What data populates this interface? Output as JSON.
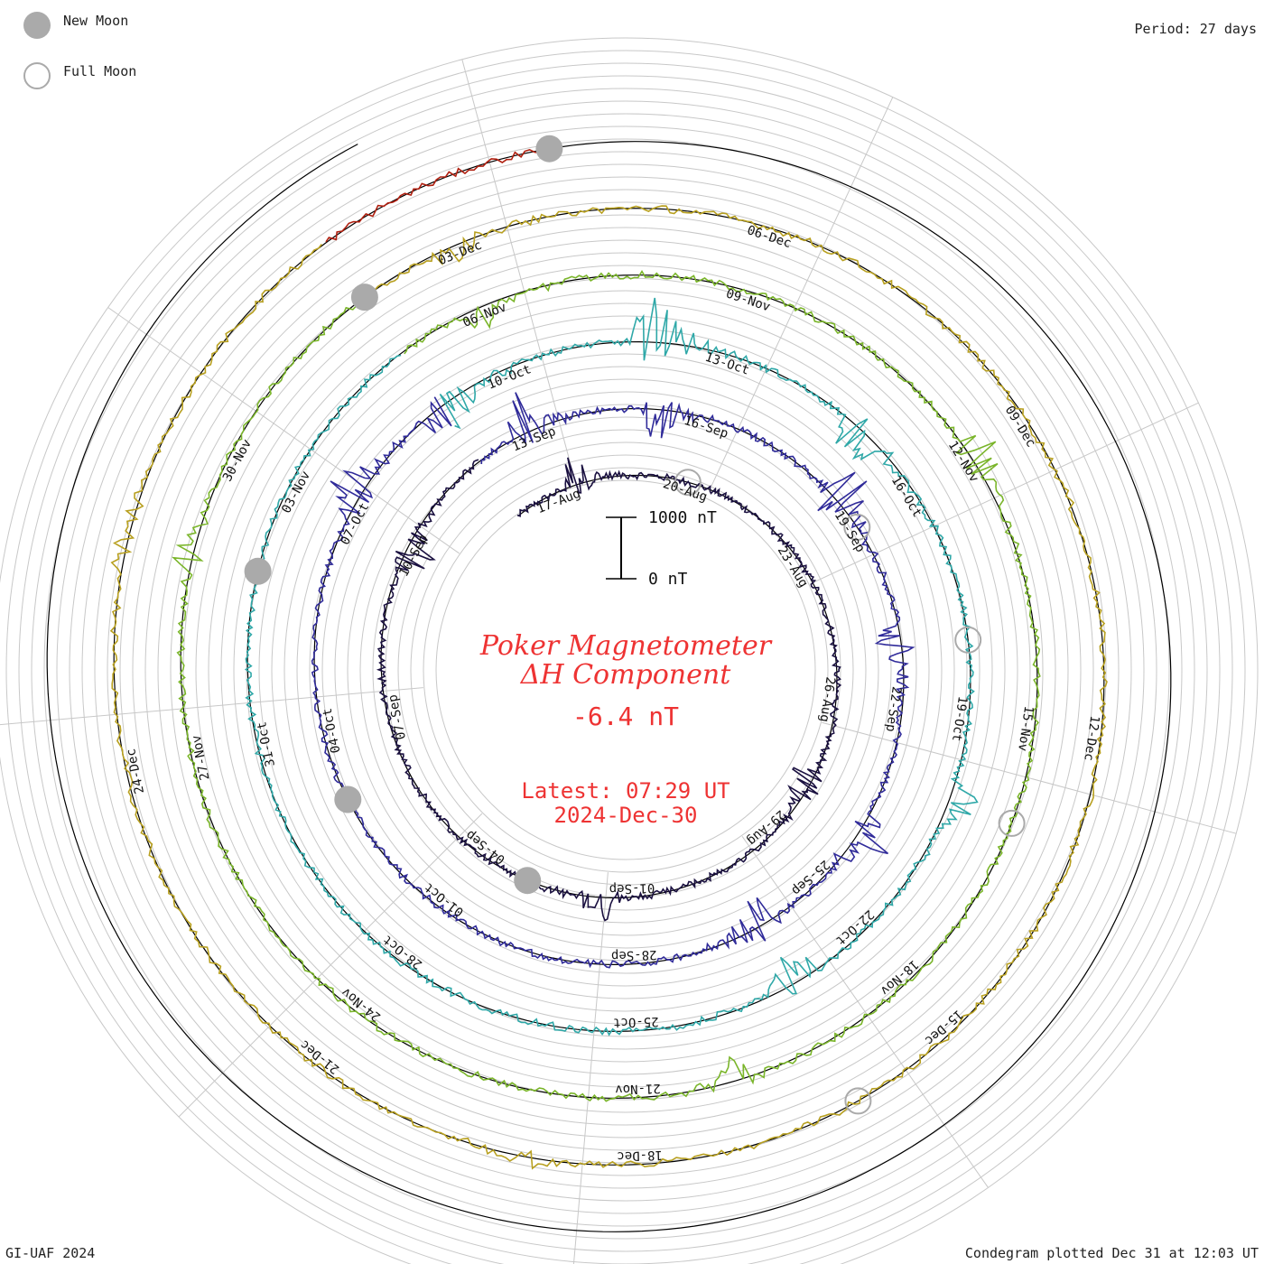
{
  "legend": {
    "new_moon_label": "New Moon",
    "full_moon_label": "Full Moon",
    "new_moon_color": "#aaaaaa",
    "full_moon_color": "#aaaaaa"
  },
  "header": {
    "period": "Period: 27 days"
  },
  "footer": {
    "credit": "GI-UAF 2024",
    "plotted": "Condegram plotted Dec 31 at 12:03 UT"
  },
  "title": {
    "line1": "Poker Magnetometer",
    "line2": "ΔH Component",
    "value": "-6.4 nT",
    "latest": "Latest: 07:29 UT",
    "date": "2024-Dec-30",
    "color": "#ee3333"
  },
  "scale": {
    "top_label": "1000 nT",
    "bottom_label": "0 nT"
  },
  "chart_data": {
    "type": "line",
    "period_days": 27,
    "units": "nT",
    "title": "Poker Magnetometer ΔH Component",
    "x_date_range": [
      "2024-08-15",
      "2024-12-30"
    ],
    "scale_bar": [
      0,
      1000
    ],
    "cycles": [
      {
        "start": "2024-08-15",
        "color": "#1a1040",
        "date_labels": [
          "17-Aug",
          "20-Aug",
          "23-Aug",
          "26-Aug",
          "29-Aug",
          "01-Sep",
          "04-Sep",
          "07-Sep",
          "10-Sep"
        ]
      },
      {
        "start": "2024-09-11",
        "color": "#302b9a",
        "date_labels": [
          "13-Sep",
          "16-Sep",
          "19-Sep",
          "22-Sep",
          "25-Sep",
          "28-Sep",
          "01-Oct",
          "04-Oct",
          "07-Oct"
        ]
      },
      {
        "start": "2024-10-08",
        "color": "#2fa8a8",
        "date_labels": [
          "10-Oct",
          "13-Oct",
          "16-Oct",
          "19-Oct",
          "22-Oct",
          "25-Oct",
          "28-Oct",
          "31-Oct",
          "03-Nov"
        ]
      },
      {
        "start": "2024-11-04",
        "color": "#7ab52a",
        "date_labels": [
          "06-Nov",
          "09-Nov",
          "12-Nov",
          "15-Nov",
          "18-Nov",
          "21-Nov",
          "24-Nov",
          "27-Nov",
          "30-Nov"
        ]
      },
      {
        "start": "2024-12-01",
        "color": "#b8a020",
        "date_labels": [
          "03-Dec",
          "06-Dec",
          "09-Dec",
          "12-Dec",
          "15-Dec",
          "18-Dec",
          "21-Dec",
          "24-Dec"
        ]
      },
      {
        "start": "2024-12-28",
        "color": "#b02010",
        "date_labels": []
      }
    ],
    "new_moons": [
      "2024-09-02",
      "2024-10-02",
      "2024-11-01",
      "2024-12-01",
      "2024-12-30"
    ],
    "full_moons": [
      "2024-08-19",
      "2024-09-18",
      "2024-10-17",
      "2024-11-15",
      "2024-12-15"
    ]
  }
}
